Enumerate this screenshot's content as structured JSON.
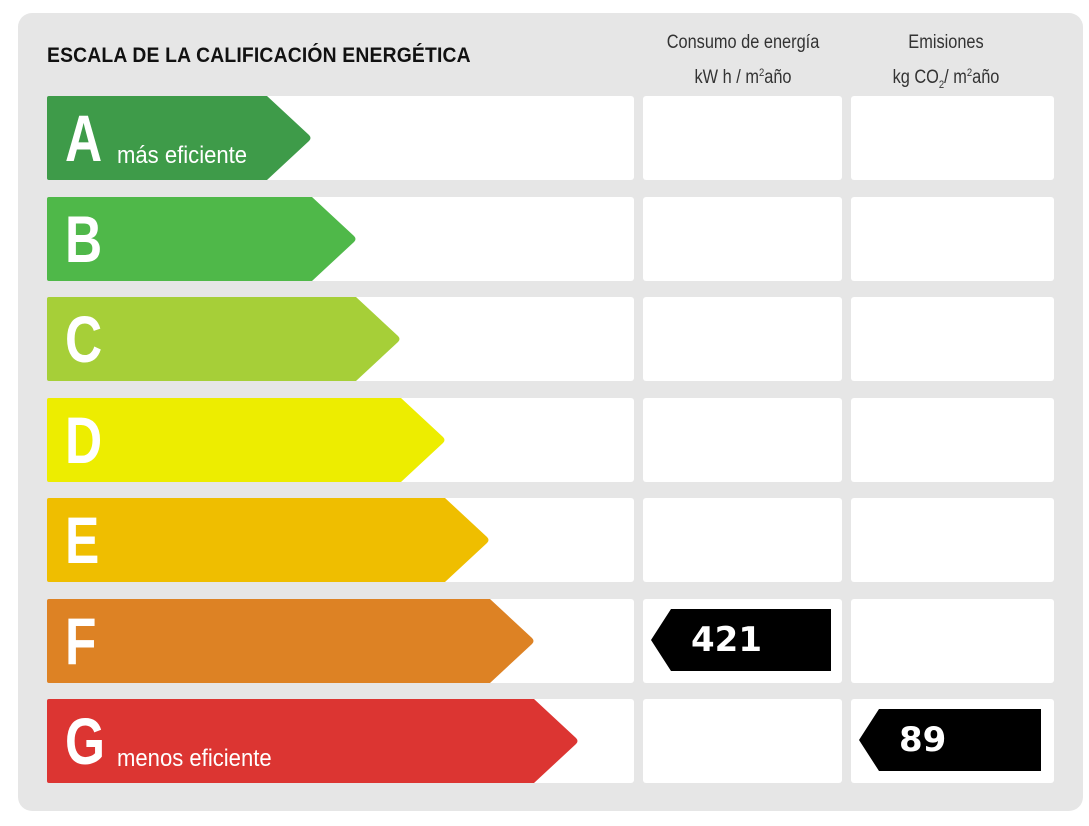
{
  "title": "ESCALA DE LA CALIFICACIÓN ENERGÉTICA",
  "columns": {
    "energy": {
      "line1": "Consumo de energía",
      "line2_pre": "kW h / m",
      "line2_sup": "2",
      "line2_post": "año"
    },
    "emissions": {
      "line1": "Emisiones",
      "line2_pre": "kg CO",
      "line2_sub": "2",
      "line2_mid": "/ m",
      "line2_sup": "2",
      "line2_post": "año"
    }
  },
  "scale": [
    {
      "letter": "A",
      "caption": "más eficiente",
      "color": "#3e9b49"
    },
    {
      "letter": "B",
      "caption": "",
      "color": "#4fb849"
    },
    {
      "letter": "C",
      "caption": "",
      "color": "#a6cf38"
    },
    {
      "letter": "D",
      "caption": "",
      "color": "#eded00"
    },
    {
      "letter": "E",
      "caption": "",
      "color": "#efbe00"
    },
    {
      "letter": "F",
      "caption": "",
      "color": "#dd8224"
    },
    {
      "letter": "G",
      "caption": "menos eficiente",
      "color": "#dc3532"
    }
  ],
  "ratings": {
    "energy": {
      "class": "F",
      "value": "421"
    },
    "emissions": {
      "class": "G",
      "value": "89"
    }
  }
}
